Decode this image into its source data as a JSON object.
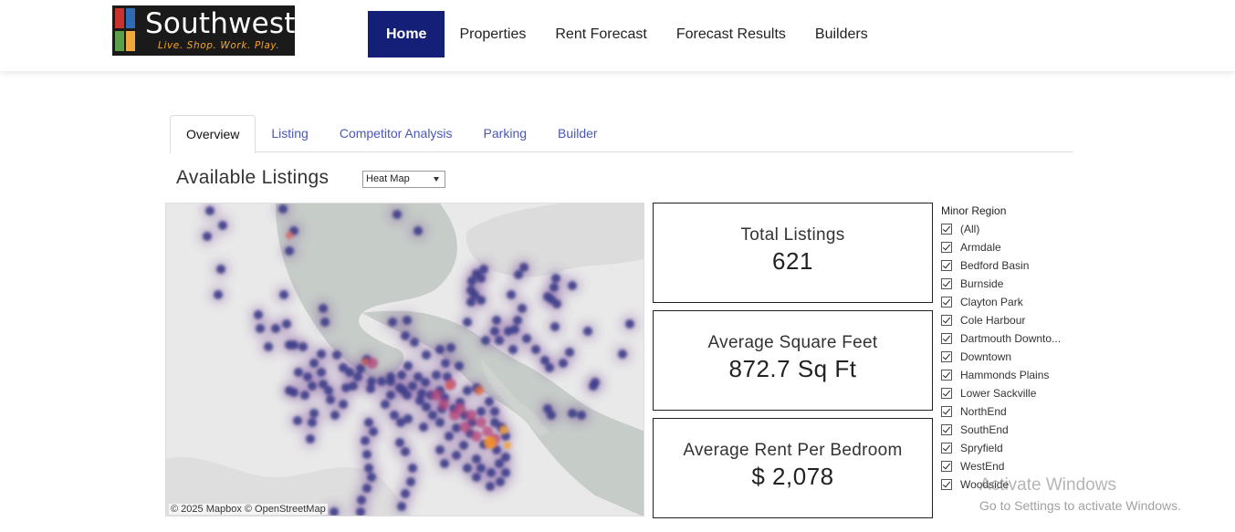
{
  "brand": {
    "name": "Southwest",
    "tagline": "Live. Shop. Work. Play.",
    "colors": {
      "mark": [
        "#c8332d",
        "#2f6ab5",
        "#f0a83a",
        "#5aa04a"
      ],
      "tagline": "#f4a62a"
    }
  },
  "nav": {
    "items": [
      "Home",
      "Properties",
      "Rent Forecast",
      "Forecast Results",
      "Builders"
    ],
    "active": "Home",
    "active_color": "#141f78"
  },
  "tabs": {
    "items": [
      "Overview",
      "Listing",
      "Competitor Analysis",
      "Parking",
      "Builder"
    ],
    "active": "Overview"
  },
  "listings": {
    "title": "Available Listings",
    "view_select": "Heat Map"
  },
  "map": {
    "attribution": "© 2025 Mapbox  © OpenStreetMap"
  },
  "kpis": [
    {
      "label": "Total Listings",
      "value": "621"
    },
    {
      "label": "Average Square Feet",
      "value": "872.7 Sq Ft"
    },
    {
      "label": "Average Rent Per Bedroom",
      "value": "$ 2,078"
    }
  ],
  "filter": {
    "title": "Minor Region",
    "items": [
      "(All)",
      "Armdale",
      "Bedford Basin",
      "Burnside",
      "Clayton Park",
      "Cole Harbour",
      "Dartmouth Downto...",
      "Downtown",
      "Hammonds Plains",
      "Lower Sackville",
      "NorthEnd",
      "SouthEnd",
      "Spryfield",
      "WestEnd",
      "Woodside"
    ]
  },
  "watermark": {
    "title": "Activate Windows",
    "subtitle": "Go to Settings to activate Windows."
  }
}
